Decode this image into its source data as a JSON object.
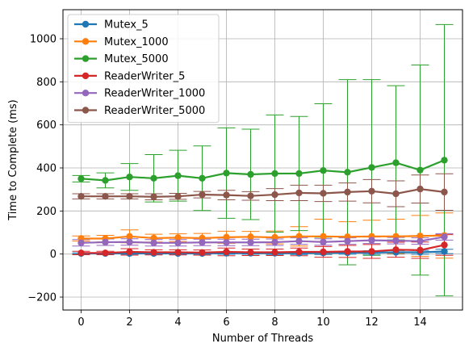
{
  "chart_data": {
    "type": "line",
    "xlabel": "Number of Threads",
    "ylabel": "Time to Complete (ms)",
    "xlim": [
      -0.75,
      15.75
    ],
    "ylim": [
      -260,
      1135
    ],
    "xticks": [
      0,
      2,
      4,
      6,
      8,
      10,
      12,
      14
    ],
    "yticks": [
      -200,
      0,
      200,
      400,
      600,
      800,
      1000
    ],
    "grid": true,
    "legend_position": "upper-left",
    "x": [
      0,
      1,
      2,
      3,
      4,
      5,
      6,
      7,
      8,
      9,
      10,
      11,
      12,
      13,
      14,
      15
    ],
    "series": [
      {
        "name": "Mutex_5",
        "color": "#1f77b4",
        "values": [
          3,
          3,
          3,
          3,
          3,
          3,
          4,
          4,
          4,
          4,
          5,
          6,
          7,
          8,
          8,
          12
        ],
        "errors": [
          3,
          3,
          4,
          4,
          4,
          4,
          5,
          5,
          6,
          6,
          7,
          7,
          8,
          8,
          9,
          10
        ]
      },
      {
        "name": "Mutex_1000",
        "color": "#ff7f0e",
        "values": [
          72,
          72,
          82,
          74,
          76,
          74,
          78,
          80,
          77,
          82,
          82,
          80,
          82,
          82,
          84,
          86
        ],
        "errors": [
          12,
          15,
          30,
          18,
          18,
          22,
          28,
          25,
          30,
          45,
          80,
          70,
          75,
          80,
          95,
          105
        ]
      },
      {
        "name": "Mutex_5000",
        "color": "#2ca02c",
        "values": [
          350,
          342,
          358,
          352,
          364,
          352,
          376,
          370,
          374,
          374,
          388,
          380,
          402,
          424,
          390,
          436
        ],
        "errors": [
          15,
          35,
          62,
          110,
          118,
          150,
          210,
          210,
          272,
          265,
          310,
          430,
          408,
          358,
          488,
          630
        ]
      },
      {
        "name": "ReaderWriter_5",
        "color": "#d62728",
        "values": [
          5,
          5,
          10,
          8,
          8,
          7,
          10,
          8,
          8,
          10,
          10,
          12,
          12,
          20,
          18,
          42
        ],
        "errors": [
          8,
          8,
          15,
          12,
          12,
          12,
          18,
          15,
          15,
          18,
          25,
          28,
          32,
          35,
          38,
          48
        ]
      },
      {
        "name": "ReaderWriter_1000",
        "color": "#9467bd",
        "values": [
          52,
          55,
          56,
          52,
          52,
          54,
          54,
          54,
          55,
          60,
          56,
          60,
          64,
          62,
          60,
          80
        ],
        "errors": [
          15,
          15,
          15,
          15,
          15,
          15,
          15,
          15,
          15,
          15,
          15,
          15,
          15,
          15,
          15,
          15
        ]
      },
      {
        "name": "ReaderWriter_5000",
        "color": "#8c564b",
        "values": [
          268,
          268,
          268,
          266,
          268,
          276,
          274,
          270,
          276,
          284,
          282,
          288,
          292,
          280,
          302,
          288
        ],
        "errors": [
          12,
          12,
          12,
          14,
          14,
          15,
          22,
          20,
          28,
          36,
          38,
          42,
          54,
          60,
          65,
          85
        ]
      }
    ]
  }
}
